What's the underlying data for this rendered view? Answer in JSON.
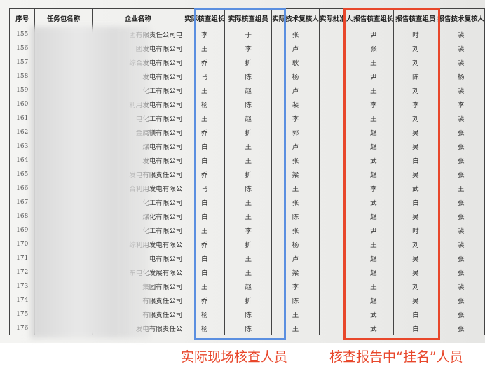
{
  "headers": [
    "序号",
    "任务包名称",
    "企业名称",
    "实际核查组长",
    "实际核查组员",
    "实际技术复核人",
    "实际批准人",
    "报告核查组长",
    "报告核查组员",
    "报告技术复核人"
  ],
  "rows": [
    [
      "155",
      "",
      "团有限责任公司电",
      "李",
      "于",
      "张",
      "",
      "尹",
      "时",
      "裴"
    ],
    [
      "156",
      "",
      "团发电有限公司",
      "王",
      "李",
      "卢",
      "",
      "张",
      "刘",
      "裴"
    ],
    [
      "157",
      "",
      "综合发电有限公司",
      "乔",
      "折",
      "耿",
      "",
      "王",
      "刘",
      "裴"
    ],
    [
      "158",
      "",
      "发电有限公司",
      "马",
      "陈",
      "杨",
      "",
      "尹",
      "陈",
      "杨"
    ],
    [
      "159",
      "",
      "化工有限公司",
      "王",
      "赵",
      "卢",
      "",
      "王",
      "刘",
      "裴"
    ],
    [
      "160",
      "",
      "利用发电有限公司",
      "杨",
      "陈",
      "裴",
      "",
      "李",
      "李",
      "李"
    ],
    [
      "161",
      "",
      "电化工有限公司",
      "王",
      "赵",
      "李",
      "",
      "王",
      "刘",
      "裴"
    ],
    [
      "162",
      "",
      "金属镁有限公司",
      "乔",
      "折",
      "郭",
      "",
      "赵",
      "吴",
      "张"
    ],
    [
      "163",
      "",
      "煤电有限公司",
      "白",
      "王",
      "卢",
      "",
      "赵",
      "吴",
      "张"
    ],
    [
      "164",
      "",
      "发电有限公司",
      "白",
      "王",
      "张",
      "",
      "武",
      "白",
      "张"
    ],
    [
      "165",
      "",
      "发电有限责任公司",
      "乔",
      "折",
      "梁",
      "",
      "赵",
      "吴",
      "张"
    ],
    [
      "166",
      "",
      "合利用发电有限公",
      "马",
      "陈",
      "王",
      "",
      "李",
      "武",
      "王"
    ],
    [
      "167",
      "",
      "化工有限公司",
      "白",
      "王",
      "张",
      "",
      "武",
      "白",
      "张"
    ],
    [
      "168",
      "",
      "煤化有限公司",
      "白",
      "王",
      "陈",
      "",
      "赵",
      "吴",
      "张"
    ],
    [
      "169",
      "",
      "化工有限公司",
      "王",
      "李",
      "张",
      "",
      "尹",
      "时",
      "裴"
    ],
    [
      "170",
      "",
      "综利用发电有限公",
      "乔",
      "折",
      "杨",
      "",
      "王",
      "刘",
      "裴"
    ],
    [
      "171",
      "",
      "电有限公司",
      "白",
      "王",
      "卢",
      "",
      "赵",
      "吴",
      "张"
    ],
    [
      "172",
      "",
      "东电化发展有限公",
      "白",
      "王",
      "梁",
      "",
      "赵",
      "吴",
      "张"
    ],
    [
      "173",
      "",
      "集团有限公司",
      "王",
      "赵",
      "李",
      "",
      "王",
      "刘",
      "裴"
    ],
    [
      "174",
      "",
      "有限责任公司",
      "乔",
      "折",
      "陈",
      "",
      "赵",
      "吴",
      "张"
    ],
    [
      "175",
      "",
      "有限责任公司",
      "杨",
      "陈",
      "王",
      "",
      "武",
      "白",
      "张"
    ],
    [
      "176",
      "",
      "发电有限责任公",
      "杨",
      "陈",
      "王",
      "",
      "武",
      "白",
      "张"
    ]
  ],
  "annotations": {
    "actual_label": "实际现场核查人员",
    "report_label": "核查报告中“挂名”人员",
    "actual_color": "#5b8fe0",
    "report_color": "#e8472b"
  }
}
